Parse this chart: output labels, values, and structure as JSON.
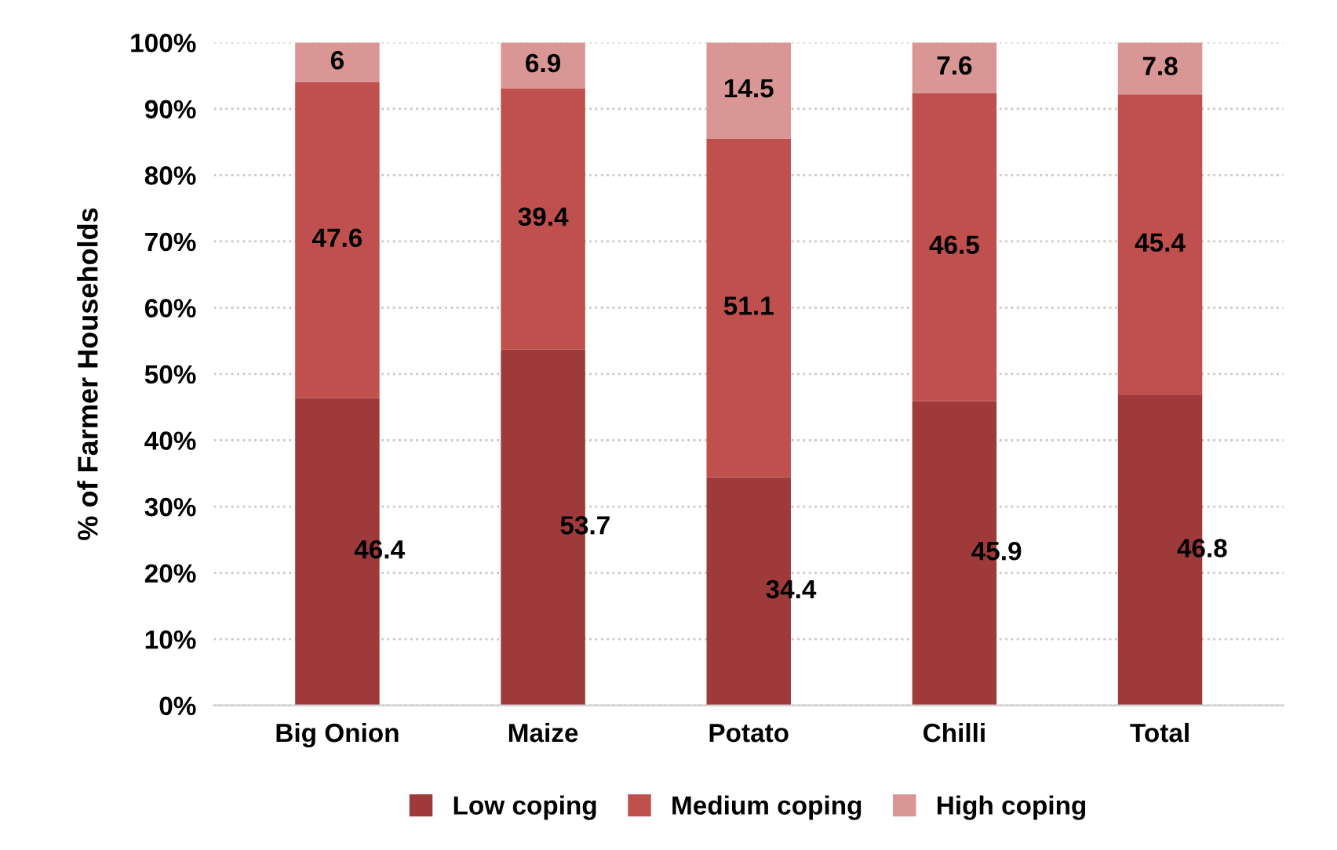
{
  "chart_data": {
    "type": "bar",
    "stacked": true,
    "ylabel": "% of Farmer Households",
    "categories": [
      "Big Onion",
      "Maize",
      "Potato",
      "Chilli",
      "Total"
    ],
    "series": [
      {
        "name": "Low coping",
        "color": "#9e3b3a",
        "values": [
          46.4,
          53.7,
          34.4,
          45.9,
          46.8
        ]
      },
      {
        "name": "Medium coping",
        "color": "#c0504d",
        "values": [
          47.6,
          39.4,
          51.1,
          46.5,
          45.4
        ]
      },
      {
        "name": "High coping",
        "color": "#d99694",
        "values": [
          6,
          6.9,
          14.5,
          7.6,
          7.8
        ]
      }
    ],
    "ylim": [
      0,
      100
    ],
    "yticks": [
      {
        "value": 0,
        "label": "0%"
      },
      {
        "value": 10,
        "label": "10%"
      },
      {
        "value": 20,
        "label": "20%"
      },
      {
        "value": 30,
        "label": "30%"
      },
      {
        "value": 40,
        "label": "40%"
      },
      {
        "value": 50,
        "label": "50%"
      },
      {
        "value": 60,
        "label": "60%"
      },
      {
        "value": 70,
        "label": "70%"
      },
      {
        "value": 80,
        "label": "80%"
      },
      {
        "value": 90,
        "label": "90%"
      },
      {
        "value": 100,
        "label": "100%"
      }
    ],
    "grid": "y",
    "legend": "bottom",
    "data_labels": true
  }
}
